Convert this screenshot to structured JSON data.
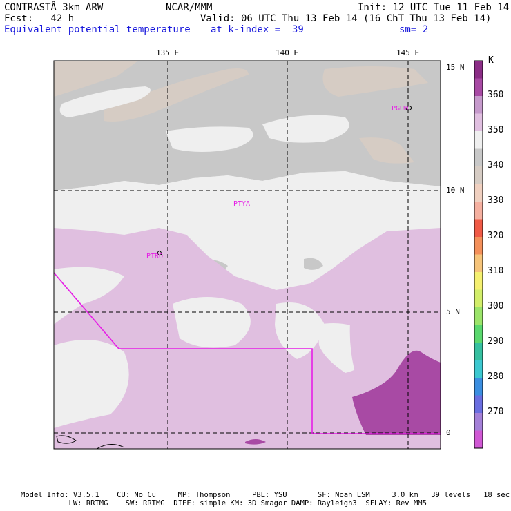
{
  "header": {
    "model": "CONTRASTÂ 3km ARW",
    "org": "NCAR/MMM",
    "init": "Init: 12 UTC Tue 11 Feb 14",
    "fcst": "Fcst:   42 h",
    "valid": "Valid: 06 UTC Thu 13 Feb 14 (16 ChT Thu 13 Feb 14)",
    "field": "Equivalent potential temperature",
    "level": "at k-index =  39",
    "smooth": "sm= 2"
  },
  "map": {
    "lon_labels": [
      "135 E",
      "140 E",
      "145 E"
    ],
    "lat_labels": [
      "15 N",
      "10 N",
      "5 N",
      "0"
    ],
    "stations": [
      "PGUM",
      "PTYA",
      "PTRO"
    ]
  },
  "colorbar": {
    "unit": "K",
    "tick_labels": [
      "360",
      "350",
      "340",
      "330",
      "320",
      "310",
      "300",
      "290",
      "280",
      "270"
    ],
    "colors": [
      "#8b2d86",
      "#a84aa4",
      "#c69acc",
      "#e0bfe0",
      "#efefef",
      "#c8c8c8",
      "#d6ccc4",
      "#f0d0c0",
      "#f5b0a0",
      "#f05a46",
      "#f4905a",
      "#f6c47a",
      "#f5f070",
      "#d2ee6a",
      "#9be46a",
      "#5ad86e",
      "#36c0a0",
      "#3cc8d0",
      "#3b8ee0",
      "#6a6ee0",
      "#a480d8",
      "#d058d4"
    ]
  },
  "footer": {
    "line1": "Model Info: V3.5.1    CU: No Cu     MP: Thompson     PBL: YSU       SF: Noah LSM     3.0 km   39 levels   18 sec",
    "line2": "           LW: RRTMG    SW: RRTMG  DIFF: simple KM: 3D Smagor DAMP: Rayleigh3  SFLAY: Rev MM5"
  }
}
